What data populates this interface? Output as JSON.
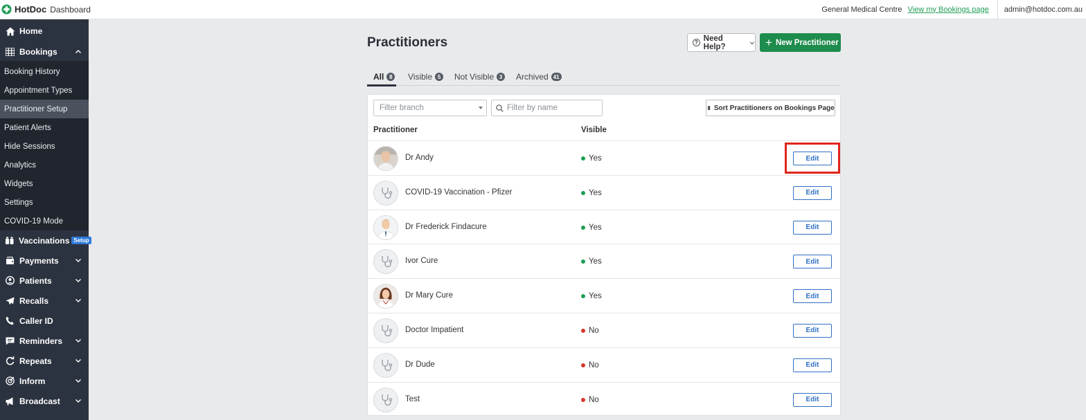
{
  "topbar": {
    "brand": "HotDoc",
    "brand_sub": "Dashboard",
    "clinic": "General Medical Centre",
    "bookings_link": "View my Bookings page",
    "user_email": "admin@hotdoc.com.au"
  },
  "sidebar": {
    "home": {
      "label": "Home",
      "icon": "home-icon"
    },
    "bookings": {
      "label": "Bookings",
      "icon": "grid-icon",
      "expanded": true
    },
    "booking_subitems": [
      {
        "label": "Booking History",
        "active": false
      },
      {
        "label": "Appointment Types",
        "active": false
      },
      {
        "label": "Practitioner Setup",
        "active": true
      },
      {
        "label": "Patient Alerts",
        "active": false
      },
      {
        "label": "Hide Sessions",
        "active": false
      },
      {
        "label": "Analytics",
        "active": false
      },
      {
        "label": "Widgets",
        "active": false
      },
      {
        "label": "Settings",
        "active": false
      },
      {
        "label": "COVID-19 Mode",
        "active": false
      }
    ],
    "vaccinations": {
      "label": "Vaccinations",
      "badge": "Setup",
      "icon": "vaccine-icon"
    },
    "others": [
      {
        "label": "Payments",
        "icon": "wallet-icon",
        "has_chevron": true
      },
      {
        "label": "Patients",
        "icon": "user-circle-icon",
        "has_chevron": true
      },
      {
        "label": "Recalls",
        "icon": "send-icon",
        "has_chevron": true
      },
      {
        "label": "Caller ID",
        "icon": "phone-icon",
        "has_chevron": false
      },
      {
        "label": "Reminders",
        "icon": "message-icon",
        "has_chevron": true
      },
      {
        "label": "Repeats",
        "icon": "repeat-icon",
        "has_chevron": true
      },
      {
        "label": "Inform",
        "icon": "target-icon",
        "has_chevron": true
      },
      {
        "label": "Broadcast",
        "icon": "megaphone-icon",
        "has_chevron": true
      }
    ]
  },
  "main": {
    "title": "Practitioners",
    "help_label": "Need Help?",
    "new_label": "New Practitioner",
    "tabs": [
      {
        "label": "All",
        "count": "8",
        "active": true
      },
      {
        "label": "Visible",
        "count": "5",
        "active": false
      },
      {
        "label": "Not Visible",
        "count": "3",
        "active": false
      },
      {
        "label": "Archived",
        "count": "41",
        "active": false
      }
    ],
    "filter_branch_placeholder": "Filter branch",
    "filter_name_placeholder": "Filter by name",
    "sort_label": "Sort Practitioners on Bookings Page",
    "columns": {
      "practitioner": "Practitioner",
      "visible": "Visible"
    },
    "edit_label": "Edit",
    "colors": {
      "yes": "#1e9e55",
      "no": "#d9372c",
      "accent_green": "#1e8c4c",
      "edit_blue": "#2f6fc4",
      "highlight": "#e0261c"
    },
    "rows": [
      {
        "name": "Dr Andy",
        "visible": "Yes",
        "avatar": "photo-male-1",
        "highlighted": true
      },
      {
        "name": "COVID-19 Vaccination - Pfizer",
        "visible": "Yes",
        "avatar": "stethoscope"
      },
      {
        "name": "Dr Frederick Findacure",
        "visible": "Yes",
        "avatar": "photo-male-2"
      },
      {
        "name": "Ivor Cure",
        "visible": "Yes",
        "avatar": "stethoscope"
      },
      {
        "name": "Dr Mary Cure",
        "visible": "Yes",
        "avatar": "photo-female"
      },
      {
        "name": "Doctor Impatient",
        "visible": "No",
        "avatar": "stethoscope"
      },
      {
        "name": "Dr Dude",
        "visible": "No",
        "avatar": "stethoscope"
      },
      {
        "name": "Test",
        "visible": "No",
        "avatar": "stethoscope"
      }
    ]
  }
}
